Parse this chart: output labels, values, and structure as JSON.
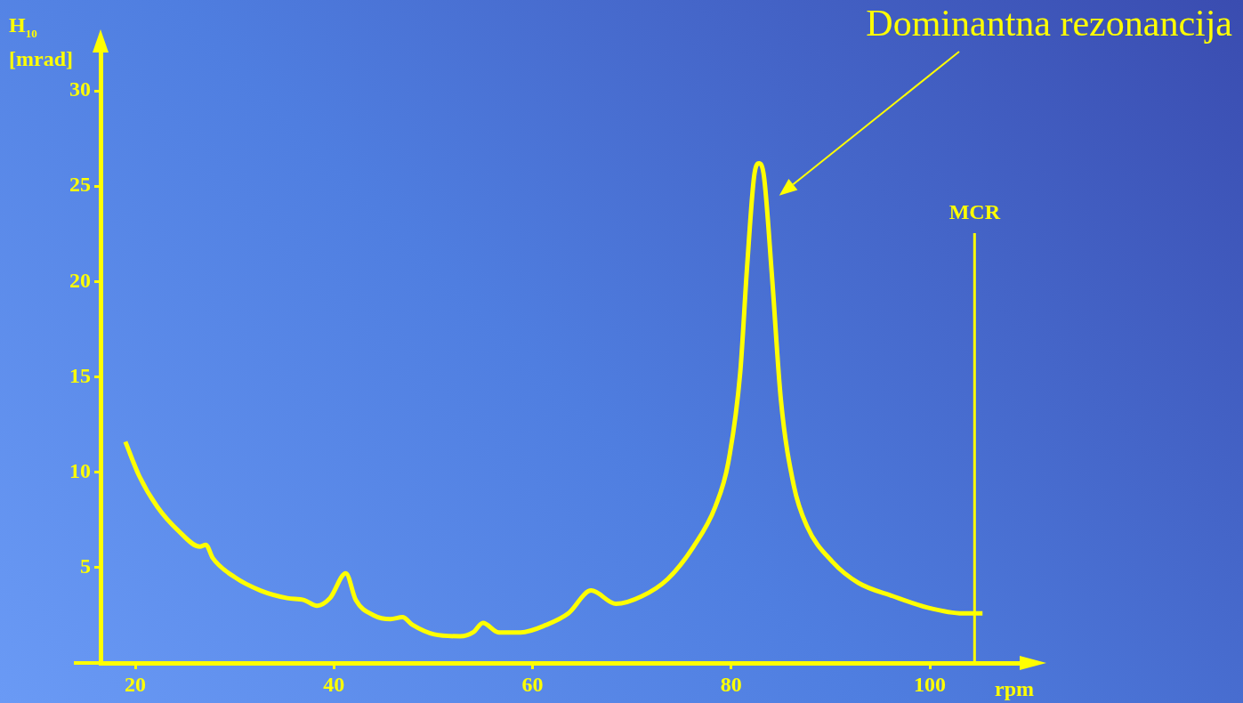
{
  "chart_data": {
    "type": "line",
    "ylabel": "H$_{10}$ [mrad]",
    "xlabel": "rpm",
    "marker": "none",
    "grid": false,
    "legend": false,
    "xlim": [
      16.5,
      109.4
    ],
    "ylim": [
      0,
      32.2
    ],
    "xticks": [
      20,
      40,
      60,
      80,
      100
    ],
    "yticks": [
      5,
      10,
      15,
      20,
      25,
      30
    ],
    "series": [
      {
        "color": "#ffff00",
        "x": [
          19.0,
          20.4,
          22.2,
          24.4,
          26.5,
          27.1,
          27.8,
          30.0,
          32.6,
          35.3,
          37.0,
          38.3,
          39.6,
          41.2,
          42.2,
          44.0,
          45.7,
          46.9,
          47.9,
          50.1,
          52.7,
          54.0,
          55.0,
          56.6,
          58.8,
          61.4,
          63.6,
          65.9,
          68.4,
          71.0,
          73.6,
          76.2,
          78.4,
          79.7,
          80.9,
          81.6,
          82.3,
          82.8,
          83.3,
          84.1,
          85.0,
          86.3,
          87.6,
          90.2,
          92.8,
          96.3,
          99.8,
          103.3,
          105.3
        ],
        "values": [
          11.6,
          9.8,
          8.2,
          6.9,
          6.1,
          6.2,
          5.5,
          4.5,
          3.8,
          3.4,
          3.3,
          3.0,
          3.4,
          4.7,
          3.3,
          2.5,
          2.3,
          2.4,
          2.0,
          1.5,
          1.4,
          1.6,
          2.1,
          1.6,
          1.6,
          2.0,
          2.6,
          3.8,
          3.1,
          3.5,
          4.4,
          6.1,
          8.2,
          10.5,
          15.2,
          20.8,
          25.5,
          26.2,
          25.5,
          20.3,
          13.8,
          9.3,
          7.2,
          5.3,
          4.2,
          3.5,
          2.9,
          2.6,
          2.6
        ]
      }
    ],
    "ref_lines": [
      {
        "axis": "x",
        "value": 104.5,
        "label": "MCR",
        "color": "#ffff00"
      }
    ],
    "annotations": [
      "Dominantna rezonancija"
    ]
  }
}
